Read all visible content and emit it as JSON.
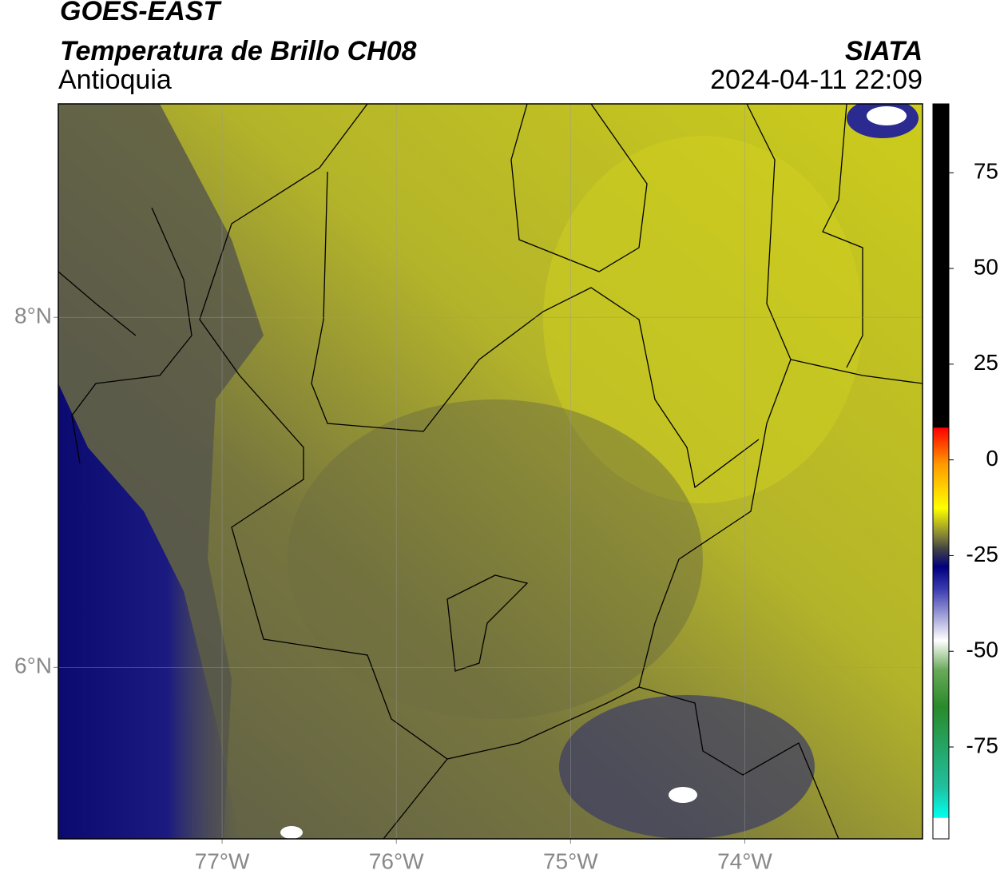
{
  "header": {
    "title": "GOES-EAST",
    "subtitle": "Temperatura de Brillo CH08",
    "region": "Antioquia",
    "source": "SIATA",
    "datetime": "2024-04-11 22:09"
  },
  "map": {
    "lonlim": [
      -77.94,
      -72.98
    ],
    "latlim": [
      5.02,
      9.22
    ],
    "lon_ticks": [
      {
        "value": -77,
        "label": "77°W"
      },
      {
        "value": -76,
        "label": "76°W"
      },
      {
        "value": -75,
        "label": "75°W"
      },
      {
        "value": -74,
        "label": "74°W"
      }
    ],
    "lat_ticks": [
      {
        "value": 8,
        "label": "8°N"
      },
      {
        "value": 6,
        "label": "6°N"
      }
    ]
  },
  "colorbar": {
    "lim": [
      -99,
      93
    ],
    "ticks": [
      75,
      50,
      25,
      0,
      -25,
      -50,
      -75
    ]
  }
}
